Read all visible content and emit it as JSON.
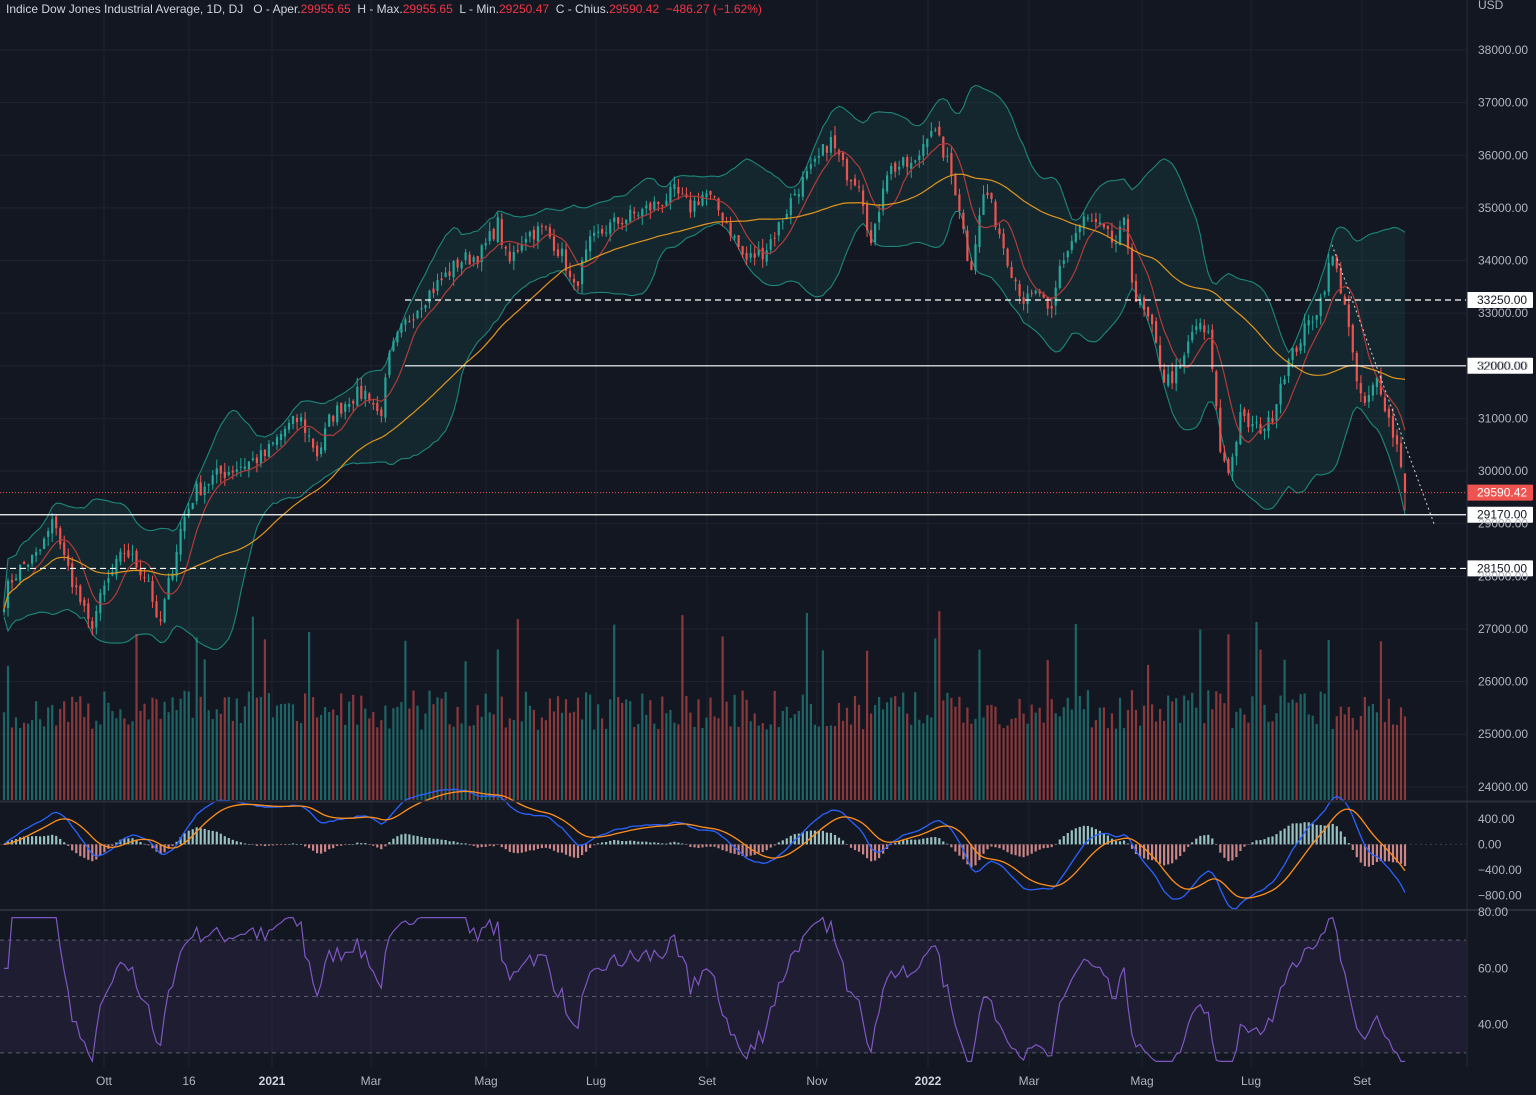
{
  "legend": {
    "symbol": "Indice Dow Jones Industrial Average, 1D, DJ",
    "open_label": "O - Aper.",
    "open": "29955.65",
    "high_label": "H - Max.",
    "high": "29955.65",
    "low_label": "L - Min.",
    "low": "29250.47",
    "close_label": "C - Chius.",
    "close": "29590.42",
    "change": "−486.27 (−1.62%)"
  },
  "currency": "USD",
  "colors": {
    "up": "#26a69a",
    "down": "#ef5350",
    "ma_fast": "#b23a3a",
    "ma_slow": "#e0951f",
    "bb": "#1e9a8a",
    "macd": "#2962ff",
    "signal": "#ff8f1c",
    "rsi": "#7e57c2",
    "bg": "#131722",
    "grid": "#1f2331"
  },
  "chart_data": [
    {
      "type": "candlestick",
      "title": "Indice Dow Jones Industrial Average, 1D, DJ",
      "x_labels": [
        "Ott",
        "16",
        "2021",
        "Mar",
        "Mag",
        "Lug",
        "Set",
        "Nov",
        "2022",
        "Mar",
        "Mag",
        "Lug",
        "Set"
      ],
      "bold_x_labels": [
        "2021",
        "2022"
      ],
      "y_ticks": [
        24000,
        25000,
        26000,
        27000,
        28000,
        29000,
        30000,
        31000,
        32000,
        33000,
        34000,
        35000,
        36000,
        37000,
        38000
      ],
      "ylim": [
        23750,
        38950
      ],
      "last_price": 29590.42,
      "last_price_label": "29590.42",
      "key_levels": [
        {
          "value": 33250,
          "label": "33250.00",
          "style": "dashed"
        },
        {
          "value": 32000,
          "label": "32000.00",
          "style": "solid"
        },
        {
          "value": 29170,
          "label": "29170.00",
          "style": "solid"
        },
        {
          "value": 28150,
          "label": "28150.00",
          "style": "dashed"
        }
      ],
      "price_path_anchors": [
        [
          0,
          27300
        ],
        [
          10,
          27900
        ],
        [
          22,
          28200
        ],
        [
          38,
          28400
        ],
        [
          55,
          29100
        ],
        [
          63,
          28400
        ],
        [
          75,
          27800
        ],
        [
          90,
          27000
        ],
        [
          105,
          27800
        ],
        [
          125,
          28500
        ],
        [
          150,
          27900
        ],
        [
          158,
          26900
        ],
        [
          168,
          27800
        ],
        [
          182,
          29000
        ],
        [
          195,
          29600
        ],
        [
          215,
          29900
        ],
        [
          240,
          30100
        ],
        [
          265,
          30300
        ],
        [
          285,
          30800
        ],
        [
          300,
          31000
        ],
        [
          318,
          30300
        ],
        [
          330,
          31000
        ],
        [
          350,
          31400
        ],
        [
          368,
          31500
        ],
        [
          380,
          31000
        ],
        [
          390,
          32200
        ],
        [
          402,
          32700
        ],
        [
          420,
          33200
        ],
        [
          440,
          33600
        ],
        [
          460,
          34000
        ],
        [
          480,
          34100
        ],
        [
          498,
          34700
        ],
        [
          508,
          33900
        ],
        [
          525,
          34500
        ],
        [
          545,
          34600
        ],
        [
          565,
          34000
        ],
        [
          573,
          33400
        ],
        [
          590,
          34300
        ],
        [
          605,
          34600
        ],
        [
          625,
          34800
        ],
        [
          650,
          35000
        ],
        [
          675,
          35300
        ],
        [
          690,
          35000
        ],
        [
          705,
          35300
        ],
        [
          725,
          34800
        ],
        [
          745,
          34000
        ],
        [
          765,
          34200
        ],
        [
          780,
          34700
        ],
        [
          795,
          35300
        ],
        [
          815,
          35800
        ],
        [
          830,
          36300
        ],
        [
          845,
          35700
        ],
        [
          860,
          35500
        ],
        [
          872,
          34200
        ],
        [
          885,
          35700
        ],
        [
          900,
          35800
        ],
        [
          915,
          35800
        ],
        [
          930,
          36600
        ],
        [
          945,
          36000
        ],
        [
          958,
          35200
        ],
        [
          970,
          33800
        ],
        [
          985,
          35400
        ],
        [
          1000,
          34500
        ],
        [
          1012,
          33800
        ],
        [
          1025,
          33200
        ],
        [
          1040,
          33400
        ],
        [
          1050,
          32800
        ],
        [
          1060,
          33900
        ],
        [
          1075,
          34500
        ],
        [
          1085,
          34800
        ],
        [
          1100,
          34600
        ],
        [
          1115,
          34300
        ],
        [
          1125,
          34700
        ],
        [
          1135,
          33300
        ],
        [
          1150,
          32800
        ],
        [
          1165,
          31700
        ],
        [
          1180,
          31900
        ],
        [
          1195,
          32800
        ],
        [
          1210,
          32500
        ],
        [
          1220,
          30400
        ],
        [
          1230,
          30000
        ],
        [
          1240,
          31000
        ],
        [
          1255,
          30800
        ],
        [
          1270,
          30900
        ],
        [
          1282,
          31800
        ],
        [
          1300,
          32500
        ],
        [
          1320,
          33200
        ],
        [
          1332,
          34100
        ],
        [
          1345,
          33200
        ],
        [
          1355,
          31800
        ],
        [
          1365,
          31200
        ],
        [
          1378,
          31800
        ],
        [
          1390,
          30900
        ],
        [
          1400,
          30300
        ],
        [
          1405,
          29590
        ]
      ],
      "volume": {
        "series": "daily volume bars"
      },
      "indicators": {
        "moving_averages": [
          "fast MA (red)",
          "slow MA (orange)"
        ],
        "bollinger_bands": true,
        "trendline": "dotted descending line from ~34300 to below 29200"
      }
    },
    {
      "type": "line",
      "series": [
        {
          "name": "MACD"
        },
        {
          "name": "Signal"
        },
        {
          "name": "Histogram"
        }
      ],
      "y_ticks": [
        400,
        0,
        -400,
        -800
      ],
      "y_labels": [
        "400.00",
        "0.00",
        "−400.00",
        "−800.00"
      ],
      "ylim": [
        -1000,
        650
      ]
    },
    {
      "type": "line",
      "series": [
        {
          "name": "RSI"
        }
      ],
      "y_ticks": [
        40,
        60,
        80
      ],
      "y_labels": [
        "40.00",
        "60.00",
        "80.00"
      ],
      "bands": [
        30,
        70
      ],
      "ylim": [
        25,
        80
      ]
    }
  ]
}
